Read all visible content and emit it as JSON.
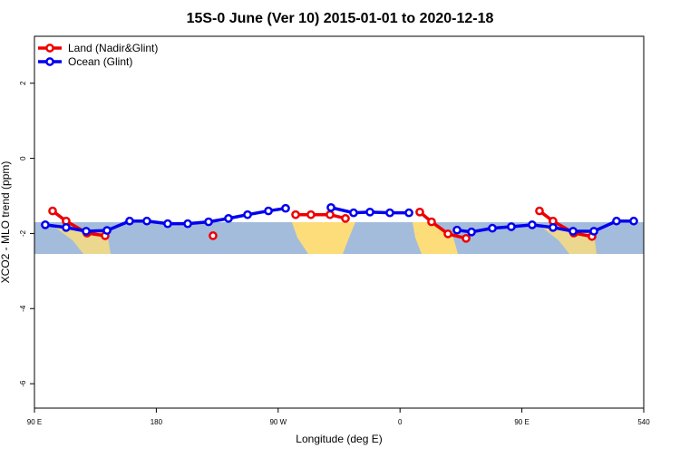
{
  "chart_data": {
    "type": "line",
    "title": "15S-0 June (Ver 10)   2015-01-01 to 2020-12-18",
    "x_label": "Longitude (deg E)",
    "y_label": "XCO2 - MLO trend (ppm)",
    "xlim": [
      90,
      540
    ],
    "ylim": [
      -6.65,
      3.25
    ],
    "xticks": [
      {
        "value": 90,
        "label": "90 E"
      },
      180,
      {
        "value": 270,
        "label": "90 W"
      },
      {
        "value": 360,
        "label": "0"
      },
      {
        "value": 450,
        "label": "90 E"
      },
      540
    ],
    "yticks": [
      -6,
      -4,
      -2,
      0,
      2
    ],
    "legend": "top-left",
    "series": [
      {
        "name": "Land (Nadir&Glint)",
        "color": "#ee0000",
        "x": [
          103.4,
          113.4,
          128.8,
          142.2,
          null,
          221.9,
          null,
          282.9,
          294.2,
          308.3,
          319.7,
          null,
          374.6,
          383.3,
          395.4,
          408.8,
          null,
          463.0,
          473.0,
          488.4,
          501.8
        ],
        "values": [
          -1.4,
          -1.67,
          -1.99,
          -2.06,
          null,
          -2.06,
          null,
          -1.5,
          -1.5,
          -1.5,
          -1.6,
          null,
          -1.43,
          -1.69,
          -2.01,
          -2.13,
          null,
          -1.4,
          -1.67,
          -1.99,
          -2.08
        ]
      },
      {
        "name": "Ocean (Glint)",
        "color": "#0000ee",
        "x": [
          98.0,
          113.4,
          128.2,
          143.6,
          160.3,
          173.0,
          188.4,
          203.2,
          218.6,
          233.3,
          247.4,
          262.8,
          275.5,
          null,
          309.0,
          325.7,
          337.8,
          352.5,
          366.6,
          null,
          402.1,
          412.8,
          428.2,
          442.2,
          457.6,
          473.0,
          487.8,
          503.2,
          519.9,
          532.6
        ],
        "values": [
          -1.77,
          -1.84,
          -1.94,
          -1.92,
          -1.67,
          -1.67,
          -1.74,
          -1.74,
          -1.69,
          -1.6,
          -1.5,
          -1.4,
          -1.33,
          null,
          -1.31,
          -1.45,
          -1.43,
          -1.45,
          -1.45,
          null,
          -1.91,
          -1.96,
          -1.86,
          -1.82,
          -1.77,
          -1.84,
          -1.94,
          -1.94,
          -1.67,
          -1.67
        ]
      }
    ]
  }
}
